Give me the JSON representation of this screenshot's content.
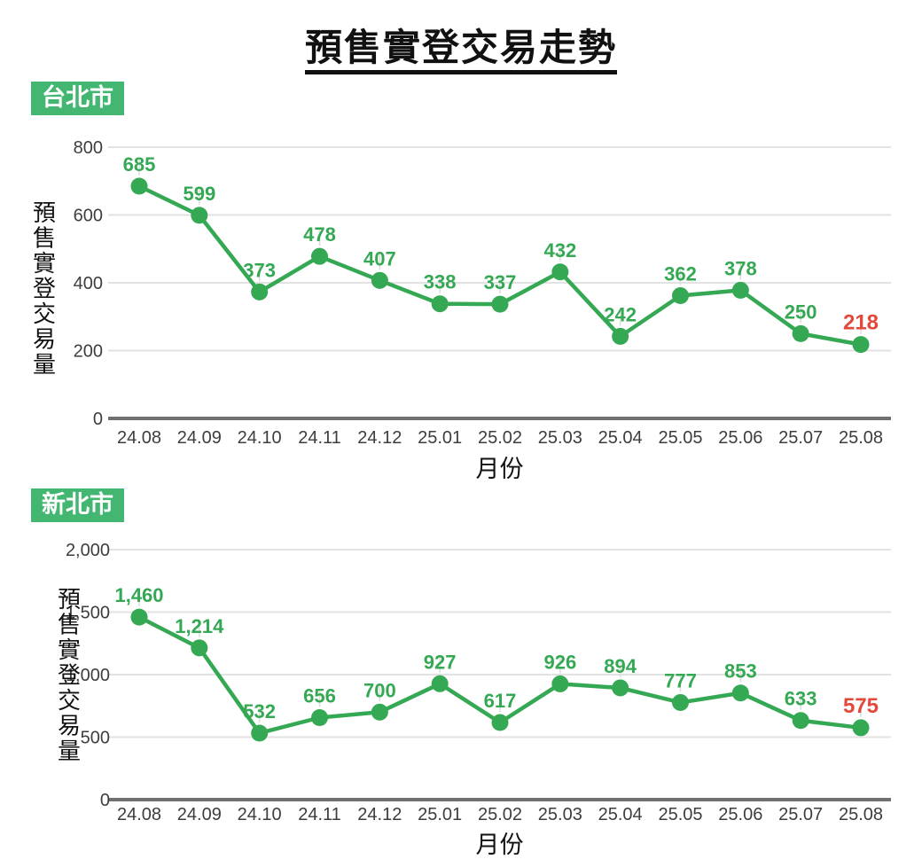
{
  "title": "預售實登交易走勢",
  "colors": {
    "badge_background": "#43b671",
    "badge_text": "#ffffff",
    "series_green": "#34a853",
    "last_value_red": "#e2493b",
    "gridline": "#e2e2e2",
    "zero_axis": "#707070",
    "leader_line": "#dcdcdc",
    "tick_text": "#3d3d3d",
    "axis_title_text": "#111111"
  },
  "chart_data": [
    {
      "type": "line",
      "region_label": "台北市",
      "x": [
        "24.08",
        "24.09",
        "24.10",
        "24.11",
        "24.12",
        "25.01",
        "25.02",
        "25.03",
        "25.04",
        "25.05",
        "25.06",
        "25.07",
        "25.08"
      ],
      "values": [
        685,
        599,
        373,
        478,
        407,
        338,
        337,
        432,
        242,
        362,
        378,
        250,
        218
      ],
      "value_labels": [
        "685",
        "599",
        "373",
        "478",
        "407",
        "338",
        "337",
        "432",
        "242",
        "362",
        "378",
        "250",
        "218"
      ],
      "xlabel": "月份",
      "ylabel": "預售實登交易量",
      "ylim": [
        0,
        800
      ],
      "yticks": [
        0,
        200,
        400,
        600,
        800
      ],
      "ytick_labels": [
        "0",
        "200",
        "400",
        "600",
        "800"
      ],
      "grid": true,
      "legend": "none",
      "line_color": "#34a853",
      "point_color": "#34a853",
      "label_color": "#34a853",
      "last_label_color": "#e2493b"
    },
    {
      "type": "line",
      "region_label": "新北市",
      "x": [
        "24.08",
        "24.09",
        "24.10",
        "24.11",
        "24.12",
        "25.01",
        "25.02",
        "25.03",
        "25.04",
        "25.05",
        "25.06",
        "25.07",
        "25.08"
      ],
      "values": [
        1460,
        1214,
        532,
        656,
        700,
        927,
        617,
        926,
        894,
        777,
        853,
        633,
        575
      ],
      "value_labels": [
        "1,460",
        "1,214",
        "532",
        "656",
        "700",
        "927",
        "617",
        "926",
        "894",
        "777",
        "853",
        "633",
        "575"
      ],
      "xlabel": "月份",
      "ylabel": "預售實登交易量",
      "ylim": [
        0,
        2000
      ],
      "yticks": [
        0,
        500,
        1000,
        1500,
        2000
      ],
      "ytick_labels": [
        "0",
        "500",
        "1,000",
        "1,500",
        "2,000"
      ],
      "grid": true,
      "legend": "none",
      "line_color": "#34a853",
      "point_color": "#34a853",
      "label_color": "#34a853",
      "last_label_color": "#e2493b"
    }
  ]
}
